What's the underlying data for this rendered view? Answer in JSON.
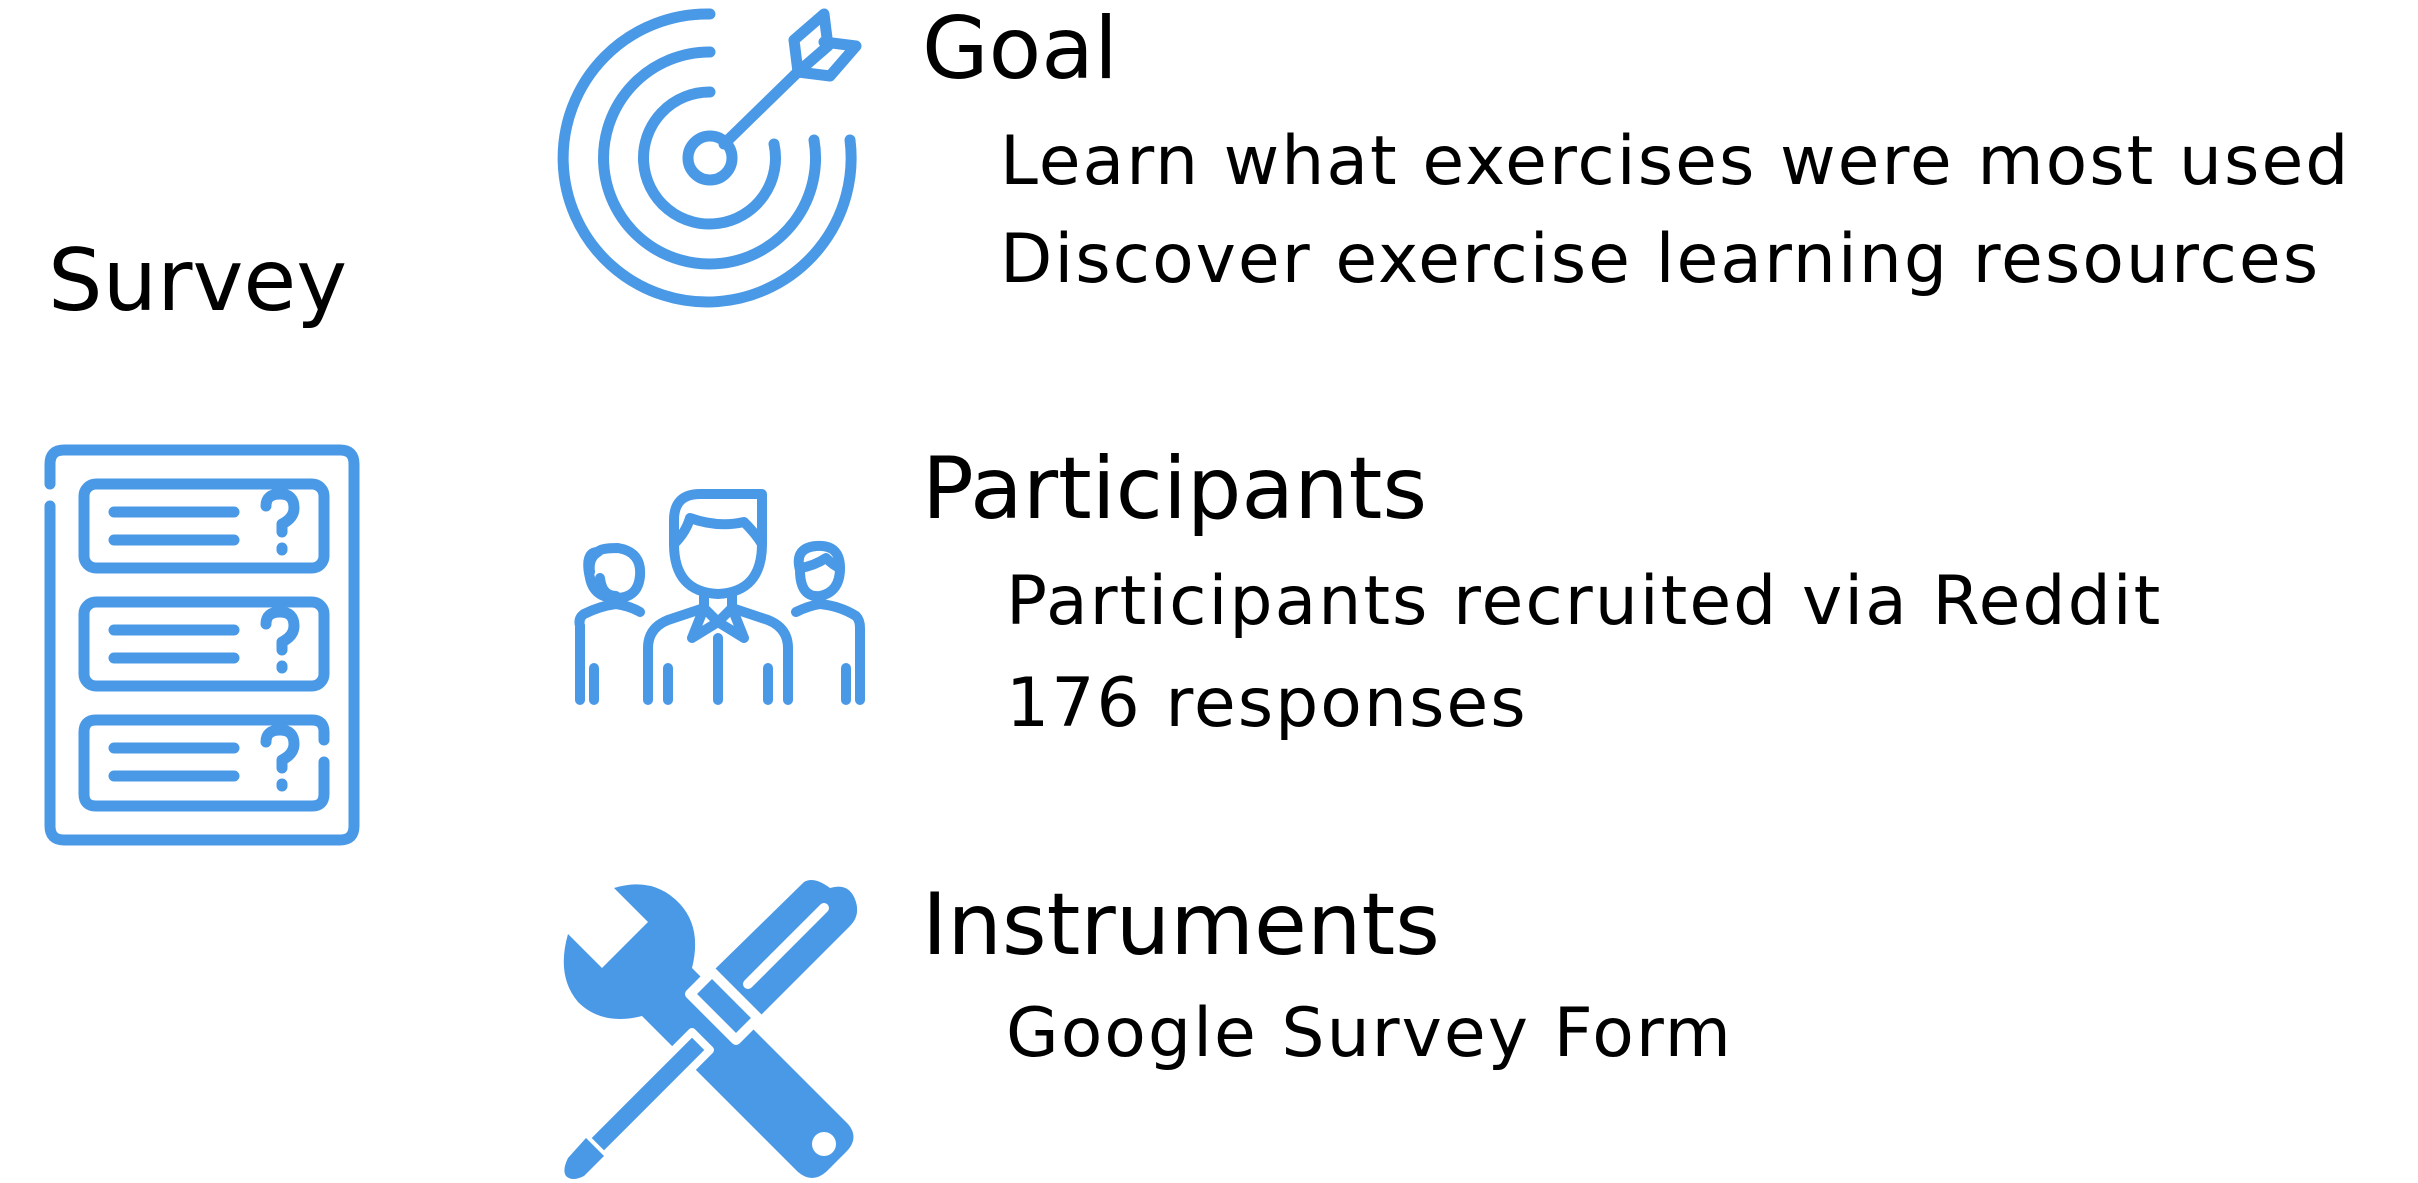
{
  "accent_color": "#4A99E6",
  "survey": {
    "title": "Survey",
    "icon": "survey-form-icon"
  },
  "sections": [
    {
      "id": "goal",
      "heading": "Goal",
      "icon": "target-icon",
      "items": [
        "Learn what exercises were most used",
        "Discover exercise learning resources"
      ]
    },
    {
      "id": "participants",
      "heading": "Participants",
      "icon": "people-group-icon",
      "items": [
        "Participants recruited via Reddit",
        "176 responses"
      ]
    },
    {
      "id": "instruments",
      "heading": "Instruments",
      "icon": "wrench-screwdriver-icon",
      "items": [
        "Google Survey Form"
      ]
    }
  ]
}
